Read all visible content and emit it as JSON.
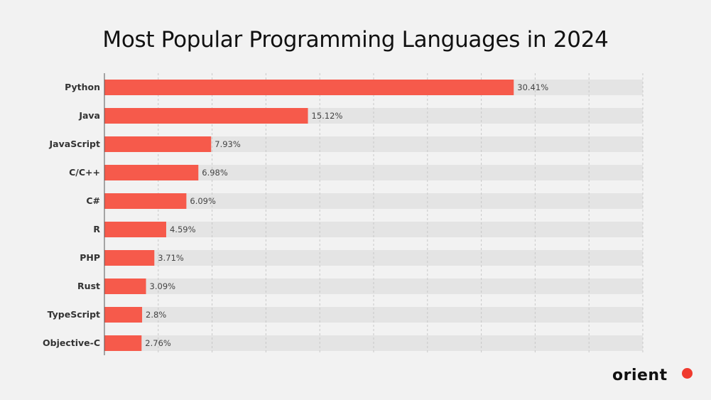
{
  "chart_data": {
    "type": "bar",
    "orientation": "horizontal",
    "title": "Most Popular Programming Languages in 2024",
    "categories": [
      "Python",
      "Java",
      "JavaScript",
      "C/C++",
      "C#",
      "R",
      "PHP",
      "Rust",
      "TypeScript",
      "Objective-C"
    ],
    "values": [
      30.41,
      15.12,
      7.93,
      6.98,
      6.09,
      4.59,
      3.71,
      3.09,
      2.8,
      2.76
    ],
    "data_labels": [
      "30.41%",
      "15.12%",
      "7.93%",
      "6.98%",
      "6.09%",
      "4.59%",
      "3.71%",
      "3.09%",
      "2.8%",
      "2.76%"
    ],
    "xlim": [
      0,
      40
    ],
    "grid_step": 4,
    "grid": true,
    "xlabel": "",
    "ylabel": ""
  },
  "colors": {
    "bar": "#f65a4b",
    "track": "#e4e4e4",
    "background": "#f2f2f2",
    "grid": "#c8c8c8",
    "logo_dot": "#f03a2e"
  },
  "logo": {
    "text": "orient"
  }
}
